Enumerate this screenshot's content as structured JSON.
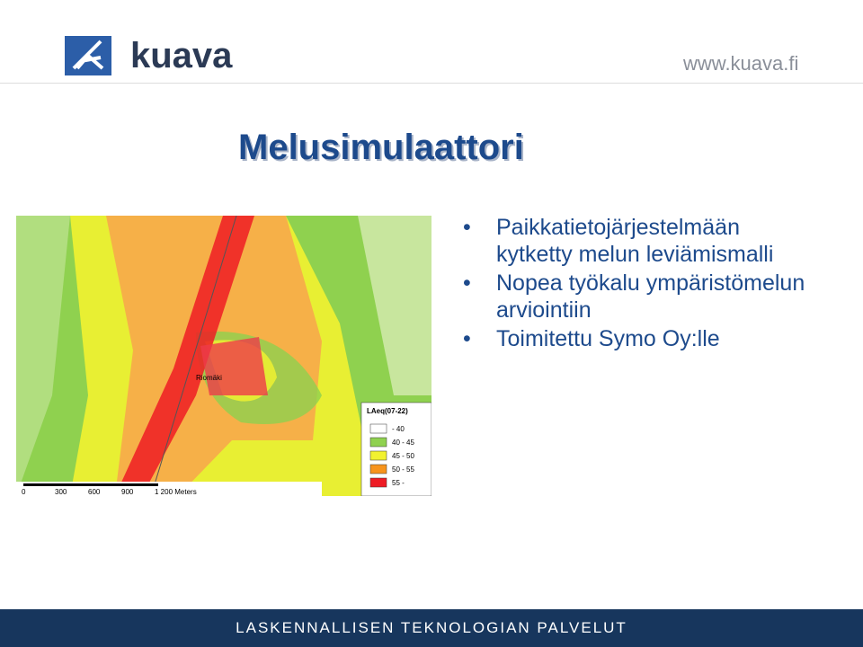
{
  "header": {
    "logo": "kuava",
    "url": "www.kuava.fi"
  },
  "title": "Melusimulaattori",
  "bullets": [
    "Paikkatietojärjestelmään kytketty melun leviämismalli",
    "Nopea työkalu ympäristömelun arviointiin",
    "Toimitettu Symo Oy:lle"
  ],
  "map": {
    "place": "Riomäki",
    "legend_title": "LAeq(07-22)",
    "legend": [
      {
        "label": "- 40",
        "color": "#ffffff"
      },
      {
        "label": "40 - 45",
        "color": "#8fd14f"
      },
      {
        "label": "45 - 50",
        "color": "#f2f230"
      },
      {
        "label": "50 - 55",
        "color": "#f7941d"
      },
      {
        "label": "55 -",
        "color": "#ee1c25"
      }
    ],
    "scale": [
      "0",
      "300",
      "600",
      "900",
      "1 200 Meters"
    ]
  },
  "footer": "LASKENNALLISEN TEKNOLOGIAN PALVELUT"
}
